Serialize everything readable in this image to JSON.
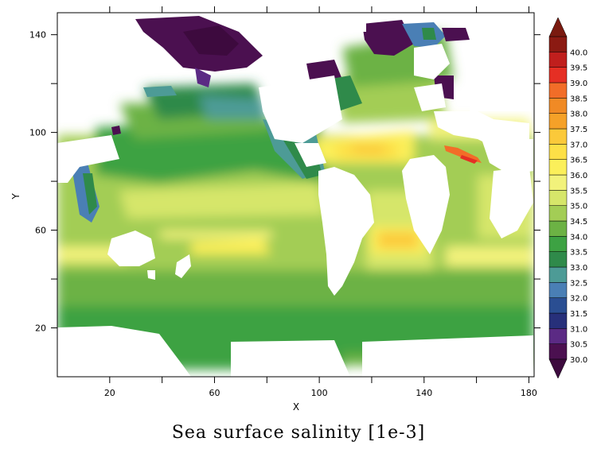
{
  "chart_data": {
    "type": "heatmap",
    "title": "Sea surface salinity [1e-3]",
    "xlabel": "X",
    "ylabel": "Y",
    "xlim": [
      0,
      182
    ],
    "ylim": [
      0,
      149
    ],
    "x_ticks": [
      20,
      60,
      100,
      140,
      180
    ],
    "y_ticks": [
      20,
      60,
      100,
      140
    ],
    "grid": false,
    "legend": "right colorbar",
    "colorbar": {
      "labels": [
        "30.0",
        "30.5",
        "31.0",
        "31.5",
        "32.0",
        "32.5",
        "33.0",
        "33.5",
        "34.0",
        "34.5",
        "35.0",
        "35.5",
        "36.0",
        "36.5",
        "37.0",
        "37.5",
        "38.0",
        "38.5",
        "39.0",
        "39.5",
        "40.0"
      ],
      "colors": [
        "#4b1050",
        "#5b2a84",
        "#27307a",
        "#2a4e92",
        "#4a7fb5",
        "#4d9b96",
        "#2f8a4a",
        "#3da243",
        "#6cb244",
        "#a3cd55",
        "#d6e66a",
        "#f2f27b",
        "#fbef5a",
        "#fde047",
        "#fbc93a",
        "#f5a128",
        "#f08a25",
        "#f26d28",
        "#e52f24",
        "#c01f1d",
        "#8b1a12"
      ],
      "extend_min_color": "#3d0a3e",
      "extend_max_color": "#7a1a10"
    }
  }
}
